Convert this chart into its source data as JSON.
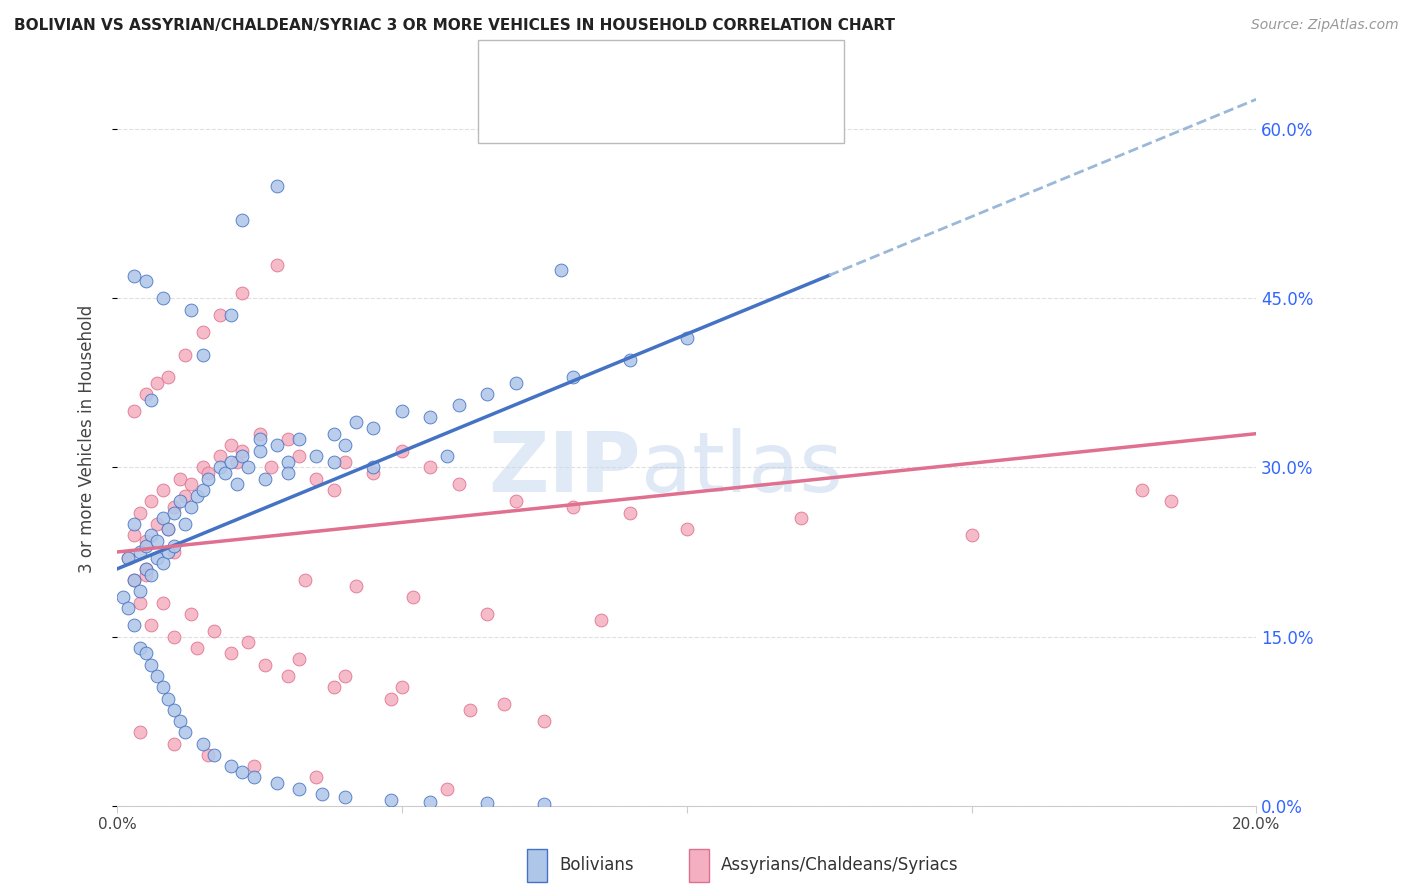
{
  "title": "BOLIVIAN VS ASSYRIAN/CHALDEAN/SYRIAC 3 OR MORE VEHICLES IN HOUSEHOLD CORRELATION CHART",
  "source": "Source: ZipAtlas.com",
  "ylabel": "3 or more Vehicles in Household",
  "ytick_vals": [
    0.0,
    15.0,
    30.0,
    45.0,
    60.0
  ],
  "xrange": [
    0.0,
    20.0
  ],
  "yrange": [
    0.0,
    65.0
  ],
  "legend_label1": "Bolivians",
  "legend_label2": "Assyrians/Chaldeans/Syriacs",
  "color_blue": "#aec6e8",
  "color_pink": "#f4afc0",
  "line_blue": "#4472c4",
  "line_pink": "#e07090",
  "dash_blue": "#9ab8d8",
  "title_color": "#222222",
  "source_color": "#999999",
  "right_axis_color": "#3366ff",
  "watermark": "ZIPatlas",
  "background_color": "#ffffff",
  "grid_color": "#e0e0e0",
  "blue_line_x0": 0.0,
  "blue_line_y0": 21.0,
  "blue_line_x1": 12.0,
  "blue_line_y1": 46.0,
  "pink_line_x0": 0.0,
  "pink_line_y0": 22.5,
  "pink_line_x1": 20.0,
  "pink_line_y1": 33.0,
  "blue_solid_end_x": 12.5,
  "blue_scatter_x": [
    0.2,
    0.3,
    0.3,
    0.4,
    0.4,
    0.5,
    0.5,
    0.6,
    0.6,
    0.7,
    0.7,
    0.8,
    0.8,
    0.9,
    0.9,
    1.0,
    1.0,
    1.1,
    1.2,
    1.3,
    1.4,
    1.5,
    1.6,
    1.8,
    1.9,
    2.0,
    2.1,
    2.2,
    2.3,
    2.5,
    2.6,
    2.8,
    3.0,
    3.2,
    3.5,
    3.8,
    4.0,
    4.2,
    4.5,
    5.0,
    5.5,
    6.0,
    6.5,
    7.0,
    8.0,
    9.0,
    10.0,
    0.1,
    0.2,
    0.3,
    0.4,
    0.5,
    0.6,
    0.7,
    0.8,
    0.9,
    1.0,
    1.1,
    1.2,
    1.5,
    1.7,
    2.0,
    2.2,
    2.4,
    2.8,
    3.2,
    3.6,
    4.0,
    4.8,
    5.5,
    6.5,
    7.5,
    0.3,
    0.5,
    0.8,
    1.3,
    2.0,
    2.5,
    3.0,
    3.8,
    4.5,
    5.8,
    7.8,
    2.8,
    2.2,
    0.6,
    1.5
  ],
  "blue_scatter_y": [
    22.0,
    25.0,
    20.0,
    22.5,
    19.0,
    23.0,
    21.0,
    24.0,
    20.5,
    23.5,
    22.0,
    25.5,
    21.5,
    24.5,
    22.5,
    26.0,
    23.0,
    27.0,
    25.0,
    26.5,
    27.5,
    28.0,
    29.0,
    30.0,
    29.5,
    30.5,
    28.5,
    31.0,
    30.0,
    31.5,
    29.0,
    32.0,
    30.5,
    32.5,
    31.0,
    33.0,
    32.0,
    34.0,
    33.5,
    35.0,
    34.5,
    35.5,
    36.5,
    37.5,
    38.0,
    39.5,
    41.5,
    18.5,
    17.5,
    16.0,
    14.0,
    13.5,
    12.5,
    11.5,
    10.5,
    9.5,
    8.5,
    7.5,
    6.5,
    5.5,
    4.5,
    3.5,
    3.0,
    2.5,
    2.0,
    1.5,
    1.0,
    0.8,
    0.5,
    0.3,
    0.2,
    0.1,
    47.0,
    46.5,
    45.0,
    44.0,
    43.5,
    32.5,
    29.5,
    30.5,
    30.0,
    31.0,
    47.5,
    55.0,
    52.0,
    36.0,
    40.0
  ],
  "pink_scatter_x": [
    0.2,
    0.3,
    0.3,
    0.4,
    0.5,
    0.5,
    0.6,
    0.7,
    0.8,
    0.9,
    1.0,
    1.0,
    1.1,
    1.2,
    1.3,
    1.5,
    1.6,
    1.8,
    2.0,
    2.1,
    2.2,
    2.5,
    2.7,
    3.0,
    3.2,
    3.5,
    3.8,
    4.0,
    4.5,
    5.0,
    5.5,
    6.0,
    7.0,
    8.0,
    9.0,
    10.0,
    12.0,
    15.0,
    18.0,
    0.3,
    0.5,
    0.7,
    0.9,
    1.2,
    1.5,
    1.8,
    2.2,
    2.8,
    3.3,
    4.2,
    5.2,
    6.5,
    8.5,
    0.4,
    0.6,
    1.0,
    1.4,
    2.0,
    2.6,
    3.0,
    3.8,
    4.8,
    6.2,
    7.5,
    0.5,
    0.8,
    1.3,
    1.7,
    2.3,
    3.2,
    4.0,
    5.0,
    6.8,
    0.4,
    1.0,
    1.6,
    2.4,
    3.5,
    5.8,
    18.5
  ],
  "pink_scatter_y": [
    22.0,
    24.0,
    20.0,
    26.0,
    23.5,
    21.0,
    27.0,
    25.0,
    28.0,
    24.5,
    26.5,
    22.5,
    29.0,
    27.5,
    28.5,
    30.0,
    29.5,
    31.0,
    32.0,
    30.5,
    31.5,
    33.0,
    30.0,
    32.5,
    31.0,
    29.0,
    28.0,
    30.5,
    29.5,
    31.5,
    30.0,
    28.5,
    27.0,
    26.5,
    26.0,
    24.5,
    25.5,
    24.0,
    28.0,
    35.0,
    36.5,
    37.5,
    38.0,
    40.0,
    42.0,
    43.5,
    45.5,
    48.0,
    20.0,
    19.5,
    18.5,
    17.0,
    16.5,
    18.0,
    16.0,
    15.0,
    14.0,
    13.5,
    12.5,
    11.5,
    10.5,
    9.5,
    8.5,
    7.5,
    20.5,
    18.0,
    17.0,
    15.5,
    14.5,
    13.0,
    11.5,
    10.5,
    9.0,
    6.5,
    5.5,
    4.5,
    3.5,
    2.5,
    1.5,
    27.0
  ]
}
